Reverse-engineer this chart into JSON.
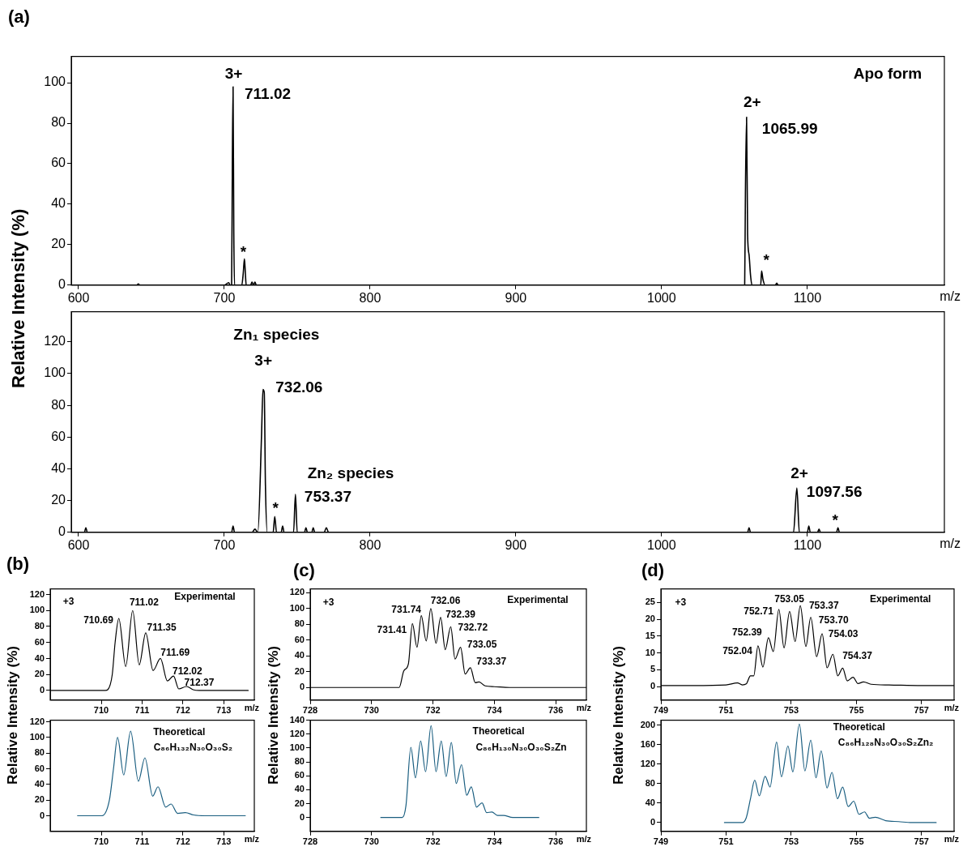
{
  "chart_data": [
    {
      "type": "line",
      "title": "(a)",
      "ylabel": "Relative Intensity (%)",
      "xlabel": "m/z",
      "xlim": [
        595,
        1194
      ],
      "ylim": [
        0,
        113
      ],
      "xticks": [
        600,
        700,
        800,
        900,
        1000,
        1100
      ],
      "yticks": [
        0,
        20,
        40,
        60,
        80,
        100
      ],
      "legend": false,
      "x": [
        595,
        640,
        641,
        642,
        660,
        700,
        703,
        704,
        705,
        705.5,
        706,
        706.5,
        707,
        708,
        712,
        713,
        713.8,
        714.5,
        715,
        718,
        719,
        720,
        721,
        722,
        730,
        1055,
        1057,
        1057.5,
        1058.3,
        1059,
        1060,
        1061,
        1062,
        1067,
        1068,
        1068.6,
        1069.5,
        1071,
        1078,
        1079,
        1080,
        1194
      ],
      "series": [
        {
          "color": "#000000",
          "values": [
            0,
            0,
            0.6,
            0,
            0,
            0,
            1.2,
            0,
            0,
            60,
            98,
            26,
            0,
            0,
            0,
            6,
            13,
            5,
            0,
            0,
            1.5,
            0,
            1.5,
            0,
            0,
            0,
            0,
            45,
            83,
            25,
            15,
            5,
            0,
            0,
            0,
            7,
            3,
            0,
            0,
            1,
            0,
            0
          ]
        }
      ],
      "annotations": [
        "Apo form",
        "3+",
        "711.02",
        "*",
        "2+",
        "1065.99",
        "*"
      ]
    },
    {
      "type": "line",
      "xlabel": "m/z",
      "xlim": [
        595,
        1194
      ],
      "ylim": [
        0,
        139
      ],
      "xticks": [
        600,
        700,
        800,
        900,
        1000,
        1100
      ],
      "yticks": [
        0,
        20,
        40,
        60,
        80,
        100,
        120
      ],
      "legend": false,
      "x": [
        595,
        604,
        605,
        606,
        705,
        706,
        707,
        719,
        721,
        723,
        725.5,
        726.5,
        727.4,
        728.2,
        729.5,
        733.5,
        734.6,
        735.8,
        739,
        740,
        741,
        747.5,
        748.8,
        750,
        755,
        756,
        757,
        760,
        761,
        762,
        768.5,
        770,
        771.5,
        1059,
        1060,
        1061,
        1090.5,
        1092.8,
        1094.5,
        1100,
        1101,
        1102,
        1107,
        1108,
        1109,
        1120,
        1121,
        1122,
        1194
      ],
      "series": [
        {
          "color": "#000000",
          "values": [
            0,
            0,
            3,
            0,
            0,
            4,
            0,
            0,
            2,
            0,
            60,
            90,
            88,
            30,
            0,
            0,
            10,
            0,
            0,
            4,
            0,
            0,
            24,
            0,
            0,
            3,
            0,
            0,
            3,
            0,
            0,
            3,
            0,
            0,
            3,
            0,
            0,
            28,
            0,
            0,
            4,
            0,
            0,
            2,
            0,
            0,
            3,
            0,
            0
          ]
        }
      ],
      "annotations": [
        "Zn₁ species",
        "3+",
        "732.06",
        "*",
        "Zn₂ species",
        "753.37",
        "2+",
        "1097.56",
        "*"
      ]
    },
    {
      "type": "line",
      "title": "(b)",
      "ylabel": "Relative Intensity (%)",
      "xlabel": "m/z",
      "xlim": [
        708.75,
        713.75
      ],
      "ylim": [
        -12,
        127
      ],
      "xticks": [
        710,
        711,
        712,
        713
      ],
      "yticks": [
        0,
        20,
        40,
        60,
        80,
        100,
        120
      ],
      "legend": false,
      "x": [
        708.78,
        710.1,
        710.16,
        710.27,
        710.34,
        710.43,
        710.6,
        710.77,
        710.93,
        711.09,
        711.27,
        711.45,
        711.62,
        711.77,
        711.9,
        712.09,
        712.25,
        712.4,
        712.6,
        713.6
      ],
      "series": [
        {
          "color": "#000000",
          "values": [
            0,
            0,
            1,
            20,
            60,
            90,
            30,
            100,
            32,
            72,
            25,
            40,
            12,
            18,
            2,
            5,
            1,
            0,
            0,
            0
          ]
        }
      ],
      "annotations": [
        "+3",
        "Experimental",
        "710.69",
        "711.02",
        "711.35",
        "711.69",
        "712.02",
        "712.37"
      ]
    },
    {
      "type": "line",
      "xlabel": "m/z",
      "xlim": [
        708.75,
        713.75
      ],
      "ylim": [
        -20,
        122
      ],
      "xticks": [
        710,
        711,
        712,
        713
      ],
      "yticks": [
        0,
        20,
        40,
        60,
        80,
        100,
        120
      ],
      "legend": false,
      "x": [
        709.42,
        710.02,
        710.2,
        710.3,
        710.4,
        710.55,
        710.72,
        710.91,
        711.07,
        711.26,
        711.39,
        711.58,
        711.71,
        711.87,
        712.06,
        712.26,
        712.54,
        713.53
      ],
      "series": [
        {
          "color": "#1a5e80",
          "values": [
            0,
            0,
            20,
            60,
            100,
            52,
            108,
            44,
            74,
            25,
            37,
            11,
            15,
            3,
            4,
            1,
            0,
            0
          ]
        }
      ],
      "annotations": [
        "Theoretical",
        "C₈₆H₁₃₂N₃₀O₃₀S₂"
      ]
    },
    {
      "type": "line",
      "title": "(c)",
      "ylabel": "Relative Intensity (%)",
      "xlabel": "m/z",
      "xlim": [
        728,
        737
      ],
      "ylim": [
        -16,
        125
      ],
      "xticks": [
        728,
        730,
        732,
        734,
        736
      ],
      "yticks": [
        0,
        20,
        40,
        60,
        80,
        100,
        120
      ],
      "legend": false,
      "x": [
        728,
        730.9,
        731.05,
        731.2,
        731.33,
        731.48,
        731.62,
        731.78,
        731.93,
        732.1,
        732.25,
        732.4,
        732.58,
        732.72,
        732.9,
        733.05,
        733.22,
        733.38,
        733.5,
        733.7,
        734,
        734.5,
        737
      ],
      "series": [
        {
          "color": "#000000",
          "values": [
            0,
            0,
            21,
            30,
            81,
            51,
            91,
            59,
            100,
            56,
            89,
            48,
            77,
            36,
            51,
            17,
            25,
            6,
            7,
            2,
            1,
            0,
            0
          ]
        }
      ],
      "annotations": [
        "+3",
        "Experimental",
        "731.41",
        "731.74",
        "732.06",
        "732.39",
        "732.72",
        "733.05",
        "733.37"
      ]
    },
    {
      "type": "line",
      "xlabel": "m/z",
      "xlim": [
        728,
        737
      ],
      "ylim": [
        -20,
        140
      ],
      "xticks": [
        728,
        730,
        732,
        734,
        736
      ],
      "yticks": [
        0,
        20,
        40,
        60,
        80,
        100,
        120,
        140
      ],
      "legend": false,
      "x": [
        730.3,
        731,
        731.12,
        731.28,
        731.43,
        731.6,
        731.76,
        731.94,
        732.1,
        732.27,
        732.43,
        732.6,
        732.76,
        732.93,
        733.1,
        733.25,
        733.42,
        733.6,
        733.75,
        733.92,
        734.1,
        734.3,
        734.6,
        735.45
      ],
      "series": [
        {
          "color": "#1a5e80",
          "values": [
            0,
            0,
            17,
            101,
            57,
            110,
            66,
            132,
            66,
            110,
            59,
            108,
            49,
            76,
            32,
            44,
            15,
            21,
            7,
            8,
            3,
            3,
            0,
            0
          ]
        }
      ],
      "annotations": [
        "Theoretical",
        "C₈₆H₁₃₀N₃₀O₃₀S₂Zn"
      ]
    },
    {
      "type": "line",
      "title": "(d)",
      "ylabel": "Relative Intensity (%)",
      "xlabel": "m/z",
      "xlim": [
        749,
        758
      ],
      "ylim": [
        -4,
        29
      ],
      "xticks": [
        749,
        751,
        753,
        755,
        757
      ],
      "yticks": [
        0,
        5,
        10,
        15,
        20,
        25
      ],
      "legend": false,
      "x": [
        749,
        750,
        751,
        751.35,
        751.5,
        751.62,
        751.75,
        751.85,
        751.98,
        752.13,
        752.3,
        752.45,
        752.62,
        752.78,
        752.95,
        753.12,
        753.28,
        753.45,
        753.6,
        753.78,
        753.95,
        754.1,
        754.28,
        754.43,
        754.58,
        754.72,
        754.9,
        755.05,
        755.22,
        755.45,
        756,
        757,
        758
      ],
      "series": [
        {
          "color": "#000000",
          "values": [
            0.3,
            0.3,
            0.5,
            1.1,
            0.5,
            0.8,
            3.2,
            3.2,
            12.1,
            5.8,
            14.5,
            10.4,
            22.9,
            11.5,
            22.3,
            13.4,
            24,
            11.9,
            20.6,
            8.9,
            15.7,
            5.6,
            9.6,
            3.2,
            5.5,
            1.7,
            2.8,
            0.9,
            1.4,
            0.7,
            0.5,
            0.3,
            0.3
          ]
        }
      ],
      "annotations": [
        "+3",
        "Experimental",
        "752.04",
        "752.39",
        "752.71",
        "753.05",
        "753.37",
        "753.70",
        "754.03",
        "754.37"
      ]
    },
    {
      "type": "line",
      "xlabel": "m/z",
      "xlim": [
        749,
        758
      ],
      "ylim": [
        -18,
        210
      ],
      "xticks": [
        749,
        751,
        753,
        755,
        757
      ],
      "yticks": [
        0,
        40,
        80,
        120,
        160,
        200
      ],
      "legend": false,
      "x": [
        750.95,
        751.5,
        751.62,
        751.75,
        751.88,
        752.02,
        752.2,
        752.35,
        752.55,
        752.7,
        752.9,
        753.05,
        753.25,
        753.42,
        753.6,
        753.76,
        753.92,
        754.1,
        754.25,
        754.42,
        754.58,
        754.75,
        754.92,
        755.08,
        755.25,
        755.4,
        755.58,
        755.9,
        756.3,
        756.7,
        757.45
      ],
      "series": [
        {
          "color": "#1a5e80",
          "values": [
            0,
            0,
            10,
            49,
            87,
            55,
            95,
            73,
            165,
            94,
            157,
            104,
            202,
            106,
            169,
            92,
            147,
            71,
            103,
            49,
            73,
            33,
            44,
            17,
            22,
            9,
            11,
            4,
            2,
            0,
            0
          ]
        }
      ],
      "annotations": [
        "Theoretical",
        "C₈₆H₁₂₈N₃₀O₃₀S₂Zn₂"
      ]
    }
  ]
}
